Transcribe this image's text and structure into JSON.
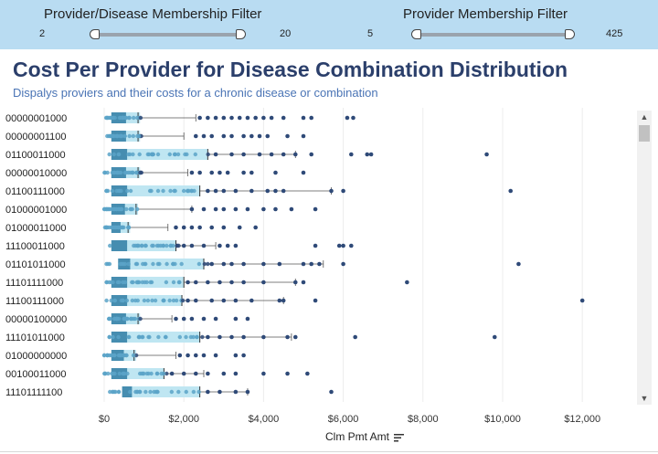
{
  "filters": {
    "disease": {
      "title": "Provider/Disease Membership Filter",
      "min": "2",
      "max": "20"
    },
    "membership": {
      "title": "Provider Membership Filter",
      "min": "5",
      "max": "425"
    }
  },
  "header": {
    "title": "Cost Per Provider for Disease Combination Distribution",
    "subtitle": "Dispalys proviers and their costs for a chronic disease or combination"
  },
  "colors": {
    "filter_bg": "#b9dcf2",
    "dot_dark": "#2f4a78",
    "dot_light": "#5aa3c8",
    "box_light": "#bfe6f2",
    "box_dark": "#1d6f9a"
  },
  "chart_data": {
    "type": "box-and-whisker with dot strip",
    "xlabel": "Clm Pmt Amt",
    "xlim": [
      -150,
      13700
    ],
    "ticks": [
      "$0",
      "$2,000",
      "$4,000",
      "$6,000",
      "$8,000",
      "$10,000",
      "$12,000"
    ],
    "tick_values": [
      0,
      2000,
      4000,
      6000,
      8000,
      10000,
      12000
    ],
    "rows": [
      {
        "label": "00000001000",
        "q1": 180,
        "median": 850,
        "q3": 900,
        "whisker": 2300,
        "dots": [
          2400,
          2600,
          2800,
          3000,
          3200,
          3400,
          3600,
          3800,
          4000,
          4200,
          4500,
          5000,
          5200,
          6100,
          6250
        ]
      },
      {
        "label": "00000001100",
        "q1": 180,
        "median": 850,
        "q3": 900,
        "whisker": 2000,
        "dots": [
          2300,
          2500,
          2700,
          3000,
          3200,
          3500,
          3700,
          3900,
          4100,
          4600,
          5000
        ]
      },
      {
        "label": "01100011000",
        "q1": 180,
        "median": 2600,
        "q3": 2600,
        "whisker": 4800,
        "dots": [
          2800,
          3200,
          3500,
          3900,
          4200,
          4500,
          4800,
          5200,
          6200,
          6600,
          6700,
          9600
        ]
      },
      {
        "label": "00000010000",
        "q1": 180,
        "median": 850,
        "q3": 900,
        "whisker": 2100,
        "dots": [
          2200,
          2400,
          2700,
          2900,
          3100,
          3500,
          3700,
          4300,
          5000
        ]
      },
      {
        "label": "01100111000",
        "q1": 180,
        "median": 2400,
        "q3": 2400,
        "whisker": 5700,
        "dots": [
          2600,
          2800,
          3000,
          3300,
          3700,
          4100,
          4300,
          4500,
          5700,
          6000,
          10200
        ]
      },
      {
        "label": "01000001000",
        "q1": 180,
        "median": 800,
        "q3": 850,
        "whisker": 2200,
        "dots": [
          2200,
          2500,
          2800,
          3000,
          3300,
          3600,
          4000,
          4300,
          4700,
          5300
        ]
      },
      {
        "label": "01000011000",
        "q1": 180,
        "median": 600,
        "q3": 650,
        "whisker": 1600,
        "dots": [
          1800,
          2000,
          2200,
          2400,
          2700,
          3000,
          3400,
          3800
        ]
      },
      {
        "label": "11100011000",
        "q1": 180,
        "median": 1800,
        "q3": 1800,
        "whisker": 2800,
        "dots": [
          2000,
          2200,
          2500,
          2900,
          3100,
          3300,
          5300,
          5900,
          6000,
          6200
        ]
      },
      {
        "label": "01101011000",
        "q1": 350,
        "median": 2500,
        "q3": 2500,
        "whisker": 5500,
        "dots": [
          2700,
          3000,
          3200,
          3500,
          4000,
          4400,
          5000,
          5200,
          5400,
          6000,
          10400
        ]
      },
      {
        "label": "11101111000",
        "q1": 180,
        "median": 2000,
        "q3": 2000,
        "whisker": 4800,
        "dots": [
          2100,
          2300,
          2600,
          2900,
          3200,
          3500,
          4000,
          4800,
          5000,
          7600
        ]
      },
      {
        "label": "11100111000",
        "q1": 180,
        "median": 1950,
        "q3": 1950,
        "whisker": 4500,
        "dots": [
          2100,
          2300,
          2700,
          3000,
          3300,
          3700,
          4400,
          4500,
          5300,
          12000
        ]
      },
      {
        "label": "00000100000",
        "q1": 180,
        "median": 850,
        "q3": 900,
        "whisker": 1700,
        "dots": [
          1800,
          2000,
          2200,
          2500,
          2800,
          3300,
          3600
        ]
      },
      {
        "label": "11101011000",
        "q1": 180,
        "median": 2400,
        "q3": 2400,
        "whisker": 4700,
        "dots": [
          2600,
          2900,
          3200,
          3500,
          4000,
          4600,
          4800,
          6300,
          9800
        ]
      },
      {
        "label": "01000000000",
        "q1": 180,
        "median": 750,
        "q3": 800,
        "whisker": 1800,
        "dots": [
          1900,
          2100,
          2300,
          2500,
          2800,
          3300,
          3500
        ]
      },
      {
        "label": "00100011000",
        "q1": 180,
        "median": 1500,
        "q3": 1500,
        "whisker": 2500,
        "dots": [
          1700,
          2000,
          2300,
          2600,
          3000,
          3300,
          4000,
          4600,
          5100
        ]
      },
      {
        "label": "11101111100",
        "q1": 450,
        "median": 2400,
        "q3": 2400,
        "whisker": 3600,
        "dots": [
          2600,
          2900,
          3300,
          3600,
          5700
        ]
      }
    ]
  }
}
